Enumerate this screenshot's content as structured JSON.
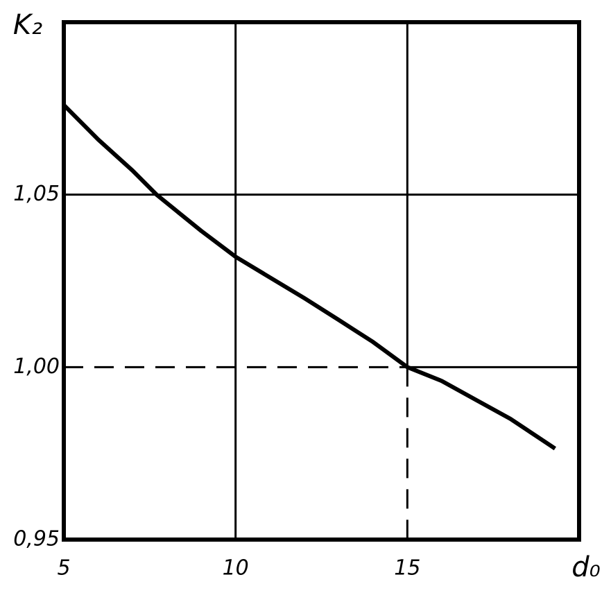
{
  "chart_data": {
    "type": "line",
    "y_label": "K₂",
    "x_label": "d₀",
    "x": [
      5,
      6,
      7,
      7.7,
      9,
      10,
      11,
      12,
      13,
      14,
      15,
      16,
      17,
      18,
      19.3
    ],
    "series": [
      {
        "color": "#000000",
        "values": [
          1.076,
          1.066,
          1.057,
          1.05,
          1.0395,
          1.032,
          1.026,
          1.02,
          1.0137,
          1.0073,
          1.0,
          0.996,
          0.9905,
          0.985,
          0.9764
        ]
      }
    ],
    "xlim": [
      5,
      20
    ],
    "ylim": [
      0.95,
      1.1
    ],
    "xticks": [
      5,
      10,
      15
    ],
    "yticks": [
      {
        "value": 0.95,
        "label": "0,95"
      },
      {
        "value": 1.0,
        "label": "1,00"
      },
      {
        "value": 1.05,
        "label": "1,05"
      }
    ],
    "grid": true,
    "reference": {
      "x": 15,
      "y": 1.0
    }
  }
}
